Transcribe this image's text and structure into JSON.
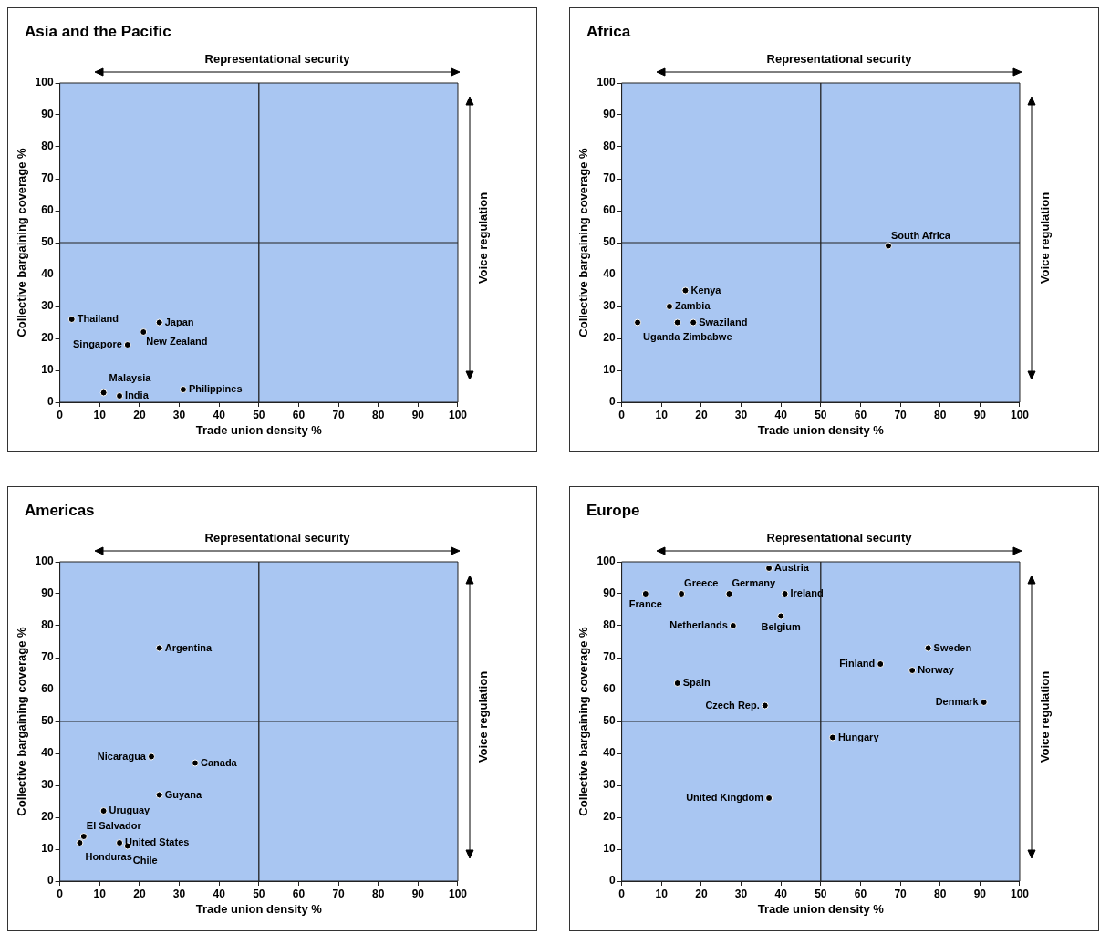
{
  "chart_data": [
    {
      "type": "scatter",
      "title": "Asia and the Pacific",
      "xlabel": "Trade union density %",
      "ylabel": "Collective bargaining coverage %",
      "x2label": "Representational security",
      "y2label": "Voice regulation",
      "xlim": [
        0,
        100
      ],
      "ylim": [
        0,
        100
      ],
      "xticks": [
        0,
        10,
        20,
        30,
        40,
        50,
        60,
        70,
        80,
        90,
        100
      ],
      "yticks": [
        0,
        10,
        20,
        30,
        40,
        50,
        60,
        70,
        80,
        90,
        100
      ],
      "grid": false,
      "legend": false,
      "marker": "circle",
      "series": [
        {
          "color": "#000000",
          "x": [
            3,
            25,
            21,
            17,
            11,
            15,
            31
          ],
          "values": [
            26,
            25,
            22,
            18,
            3,
            2,
            4
          ]
        }
      ],
      "ref_lines": [
        {
          "axis": "x",
          "value": 50
        },
        {
          "axis": "y",
          "value": 50
        }
      ],
      "annotations": [
        {
          "text": "Thailand",
          "x": 3,
          "y": 26
        },
        {
          "text": "Japan",
          "x": 25,
          "y": 25
        },
        {
          "text": "New Zealand",
          "x": 21,
          "y": 22
        },
        {
          "text": "Singapore",
          "x": 17,
          "y": 18
        },
        {
          "text": "Malaysia",
          "x": 11,
          "y": 3
        },
        {
          "text": "India",
          "x": 15,
          "y": 2
        },
        {
          "text": "Philippines",
          "x": 31,
          "y": 4
        }
      ]
    },
    {
      "type": "scatter",
      "title": "Africa",
      "xlabel": "Trade union density %",
      "ylabel": "Collective bargaining coverage %",
      "x2label": "Representational security",
      "y2label": "Voice regulation",
      "xlim": [
        0,
        100
      ],
      "ylim": [
        0,
        100
      ],
      "xticks": [
        0,
        10,
        20,
        30,
        40,
        50,
        60,
        70,
        80,
        90,
        100
      ],
      "yticks": [
        0,
        10,
        20,
        30,
        40,
        50,
        60,
        70,
        80,
        90,
        100
      ],
      "grid": false,
      "legend": false,
      "marker": "circle",
      "series": [
        {
          "color": "#000000",
          "x": [
            67,
            16,
            12,
            18,
            14,
            4
          ],
          "values": [
            49,
            35,
            30,
            25,
            25,
            25
          ]
        }
      ],
      "ref_lines": [
        {
          "axis": "x",
          "value": 50
        },
        {
          "axis": "y",
          "value": 50
        }
      ],
      "annotations": [
        {
          "text": "South Africa",
          "x": 67,
          "y": 49
        },
        {
          "text": "Kenya",
          "x": 16,
          "y": 35
        },
        {
          "text": "Zambia",
          "x": 12,
          "y": 30
        },
        {
          "text": "Swaziland",
          "x": 18,
          "y": 25
        },
        {
          "text": "Zimbabwe",
          "x": 14,
          "y": 25
        },
        {
          "text": "Uganda",
          "x": 4,
          "y": 25
        }
      ]
    },
    {
      "type": "scatter",
      "title": "Americas",
      "xlabel": "Trade union density %",
      "ylabel": "Collective bargaining coverage %",
      "x2label": "Representational security",
      "y2label": "Voice regulation",
      "xlim": [
        0,
        100
      ],
      "ylim": [
        0,
        100
      ],
      "xticks": [
        0,
        10,
        20,
        30,
        40,
        50,
        60,
        70,
        80,
        90,
        100
      ],
      "yticks": [
        0,
        10,
        20,
        30,
        40,
        50,
        60,
        70,
        80,
        90,
        100
      ],
      "grid": false,
      "legend": false,
      "marker": "circle",
      "series": [
        {
          "color": "#000000",
          "x": [
            25,
            23,
            34,
            25,
            11,
            6,
            5,
            15,
            17
          ],
          "values": [
            73,
            39,
            37,
            27,
            22,
            14,
            12,
            12,
            11
          ]
        }
      ],
      "ref_lines": [
        {
          "axis": "x",
          "value": 50
        },
        {
          "axis": "y",
          "value": 50
        }
      ],
      "annotations": [
        {
          "text": "Argentina",
          "x": 25,
          "y": 73
        },
        {
          "text": "Nicaragua",
          "x": 23,
          "y": 39
        },
        {
          "text": "Canada",
          "x": 34,
          "y": 37
        },
        {
          "text": "Guyana",
          "x": 25,
          "y": 27
        },
        {
          "text": "Uruguay",
          "x": 11,
          "y": 22
        },
        {
          "text": "El Salvador",
          "x": 6,
          "y": 14
        },
        {
          "text": "Honduras",
          "x": 5,
          "y": 12
        },
        {
          "text": "United States",
          "x": 15,
          "y": 12
        },
        {
          "text": "Chile",
          "x": 17,
          "y": 11
        }
      ]
    },
    {
      "type": "scatter",
      "title": "Europe",
      "xlabel": "Trade union density %",
      "ylabel": "Collective bargaining coverage %",
      "x2label": "Representational security",
      "y2label": "Voice regulation",
      "xlim": [
        0,
        100
      ],
      "ylim": [
        0,
        100
      ],
      "xticks": [
        0,
        10,
        20,
        30,
        40,
        50,
        60,
        70,
        80,
        90,
        100
      ],
      "yticks": [
        0,
        10,
        20,
        30,
        40,
        50,
        60,
        70,
        80,
        90,
        100
      ],
      "grid": false,
      "legend": false,
      "marker": "circle",
      "series": [
        {
          "color": "#000000",
          "x": [
            6,
            15,
            27,
            37,
            41,
            40,
            28,
            77,
            65,
            73,
            14,
            36,
            91,
            53,
            37
          ],
          "values": [
            90,
            90,
            90,
            98,
            90,
            83,
            80,
            73,
            68,
            66,
            62,
            55,
            56,
            45,
            26
          ]
        }
      ],
      "ref_lines": [
        {
          "axis": "x",
          "value": 50
        },
        {
          "axis": "y",
          "value": 50
        }
      ],
      "annotations": [
        {
          "text": "France",
          "x": 6,
          "y": 90
        },
        {
          "text": "Greece",
          "x": 15,
          "y": 90
        },
        {
          "text": "Germany",
          "x": 27,
          "y": 90
        },
        {
          "text": "Austria",
          "x": 37,
          "y": 98
        },
        {
          "text": "Ireland",
          "x": 41,
          "y": 90
        },
        {
          "text": "Belgium",
          "x": 40,
          "y": 83
        },
        {
          "text": "Netherlands",
          "x": 28,
          "y": 80
        },
        {
          "text": "Sweden",
          "x": 77,
          "y": 73
        },
        {
          "text": "Finland",
          "x": 65,
          "y": 68
        },
        {
          "text": "Norway",
          "x": 73,
          "y": 66
        },
        {
          "text": "Spain",
          "x": 14,
          "y": 62
        },
        {
          "text": "Czech Rep.",
          "x": 36,
          "y": 55
        },
        {
          "text": "Denmark",
          "x": 91,
          "y": 56
        },
        {
          "text": "Hungary",
          "x": 53,
          "y": 45
        },
        {
          "text": "United Kingdom",
          "x": 37,
          "y": 26
        }
      ]
    }
  ]
}
